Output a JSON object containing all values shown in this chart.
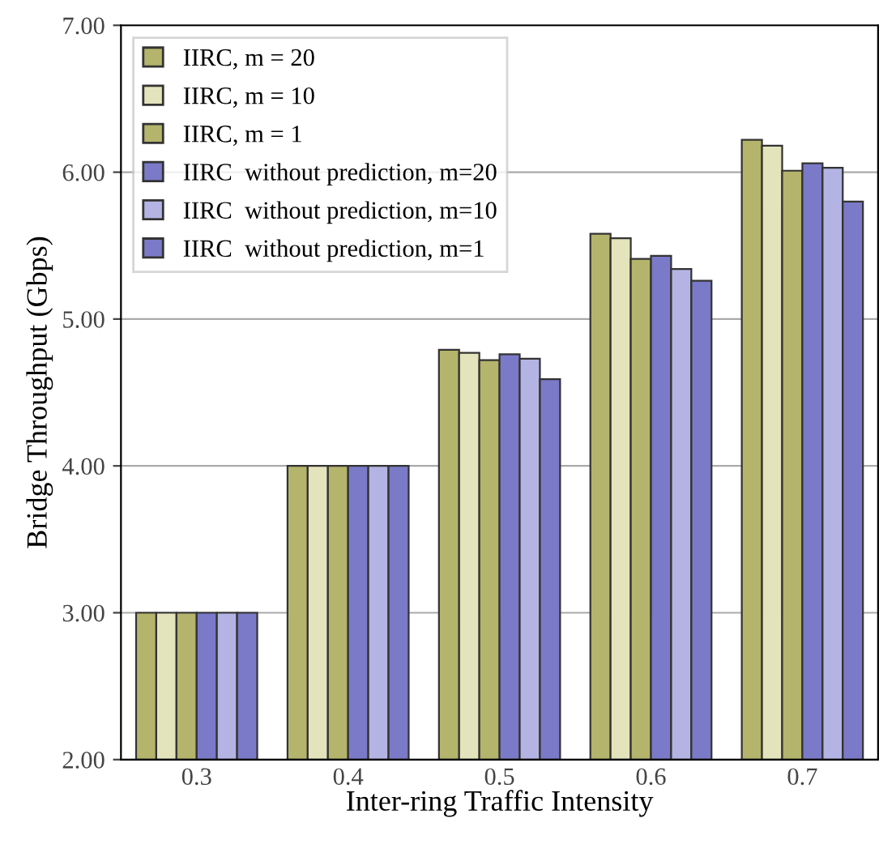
{
  "chart_data": {
    "type": "bar",
    "xlabel": "Inter-ring Traffic Intensity",
    "ylabel": "Bridge Throughput (Gbps)",
    "categories": [
      "0.3",
      "0.4",
      "0.5",
      "0.6",
      "0.7"
    ],
    "series": [
      {
        "name": "IIRC, m = 20",
        "color": "#b4b46c",
        "values": [
          3.0,
          4.0,
          4.79,
          5.58,
          6.22
        ]
      },
      {
        "name": "IIRC, m = 10",
        "color": "#e4e4bc",
        "values": [
          3.0,
          4.0,
          4.77,
          5.55,
          6.18
        ]
      },
      {
        "name": "IIRC, m = 1",
        "color": "#b4b46c",
        "values": [
          3.0,
          4.0,
          4.72,
          5.41,
          6.01
        ]
      },
      {
        "name": "IIRC  without prediction, m=20",
        "color": "#7a7ac8",
        "values": [
          3.0,
          4.0,
          4.76,
          5.43,
          6.06
        ]
      },
      {
        "name": "IIRC  without prediction, m=10",
        "color": "#b4b4e4",
        "values": [
          3.0,
          4.0,
          4.73,
          5.34,
          6.03
        ]
      },
      {
        "name": "IIRC  without prediction, m=1",
        "color": "#7a7ac8",
        "values": [
          3.0,
          4.0,
          4.59,
          5.26,
          5.8
        ]
      }
    ],
    "ylim": [
      2.0,
      7.0
    ],
    "yticks": [
      {
        "value": 2,
        "label": "2.00"
      },
      {
        "value": 3,
        "label": "3.00"
      },
      {
        "value": 4,
        "label": "4.00"
      },
      {
        "value": 5,
        "label": "5.00"
      },
      {
        "value": 6,
        "label": "6.00"
      },
      {
        "value": 7,
        "label": "7.00"
      }
    ],
    "grid": "y",
    "legend": "top left"
  }
}
